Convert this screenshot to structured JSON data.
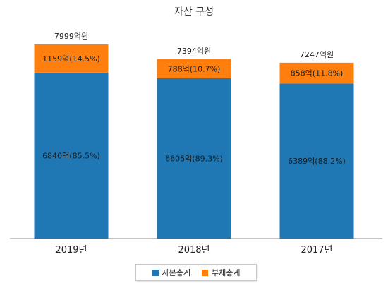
{
  "chart_data": {
    "type": "bar",
    "stacked": true,
    "title": "자산 구성",
    "categories": [
      "2019년",
      "2018년",
      "2017년"
    ],
    "series": [
      {
        "name": "자본총계",
        "color": "#1f77b4",
        "values": [
          6840,
          6605,
          6389
        ],
        "labels": [
          "6840억(85.5%)",
          "6605억(89.3%)",
          "6389억(88.2%)"
        ]
      },
      {
        "name": "부채총계",
        "color": "#ff7f0e",
        "values": [
          1159,
          788,
          858
        ],
        "labels": [
          "1159억(14.5%)",
          "788억(10.7%)",
          "858억(11.8%)"
        ]
      }
    ],
    "totals": [
      7999,
      7394,
      7247
    ],
    "total_labels": [
      "7999억원",
      "7394억원",
      "7247억원"
    ],
    "ylim": [
      0,
      7999
    ],
    "grid": false,
    "legend": "bottom"
  }
}
